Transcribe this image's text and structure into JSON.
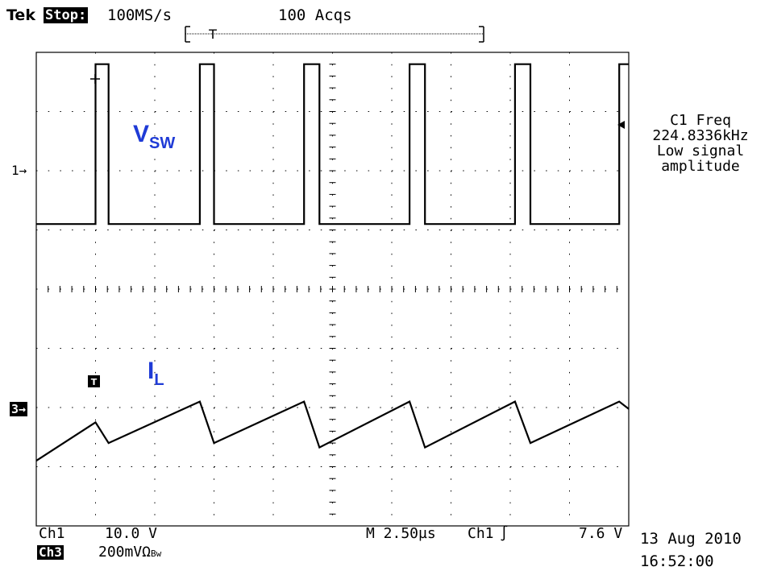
{
  "header": {
    "brand": "Tek",
    "run_state": "Stop:",
    "sample_rate": "100MS/s",
    "acquisitions": "100 Acqs"
  },
  "measurement": {
    "label": "C1 Freq",
    "value": "224.8336kHz",
    "note_line1": "Low signal",
    "note_line2": "amplitude"
  },
  "bottom_bar": {
    "ch1_label": "Ch1",
    "ch1_scale": "10.0 V",
    "ch3_label": "Ch3",
    "ch3_scale": "200mVΩ",
    "ch3_bw": "Bw",
    "timebase": "M 2.50µs",
    "trigger_source": "Ch1",
    "trigger_slope": "∫",
    "trigger_level": "7.6 V",
    "date": "13 Aug 2010",
    "time": "16:52:00"
  },
  "markers": {
    "ch1": "1→",
    "ch3": "3→",
    "trigger_tag": "T",
    "trigger_t": "T"
  },
  "colors": {
    "trace": "#000000",
    "annotation": "#1f3bd6",
    "grid": "#000000"
  },
  "chart_data": {
    "type": "line",
    "title": "",
    "xlabel": "",
    "ylabel": "",
    "x_unit": "µs",
    "x_per_div": 2.5,
    "xlim": [
      0,
      25
    ],
    "divisions": {
      "x": 10,
      "y": 8
    },
    "grid": true,
    "series": [
      {
        "name": "VSW",
        "label_main": "V",
        "label_sub": "SW",
        "channel": 1,
        "y_unit": "V",
        "y_per_div": 10.0,
        "ground_div": 5.1,
        "x": [
          0,
          2.5,
          2.5,
          3.05,
          3.05,
          6.9,
          6.9,
          7.5,
          7.5,
          11.3,
          11.3,
          11.95,
          11.95,
          15.75,
          15.75,
          16.4,
          16.4,
          20.2,
          20.2,
          20.85,
          20.85,
          24.6,
          24.6,
          25
        ],
        "y": [
          0,
          0,
          27,
          27,
          0,
          0,
          27,
          27,
          0,
          0,
          27,
          27,
          0,
          0,
          27,
          27,
          0,
          0,
          27,
          27,
          0,
          0,
          27,
          27
        ]
      },
      {
        "name": "IL",
        "label_main": "I",
        "label_sub": "L",
        "channel": 3,
        "y_unit": "mV",
        "y_per_div": 200,
        "ground_div": 1.1,
        "x": [
          0,
          2.5,
          3.05,
          6.9,
          7.5,
          11.3,
          11.95,
          15.75,
          16.4,
          20.2,
          20.85,
          24.6,
          25
        ],
        "y": [
          0,
          130,
          60,
          200,
          60,
          200,
          45,
          200,
          45,
          200,
          60,
          200,
          175
        ]
      }
    ]
  }
}
